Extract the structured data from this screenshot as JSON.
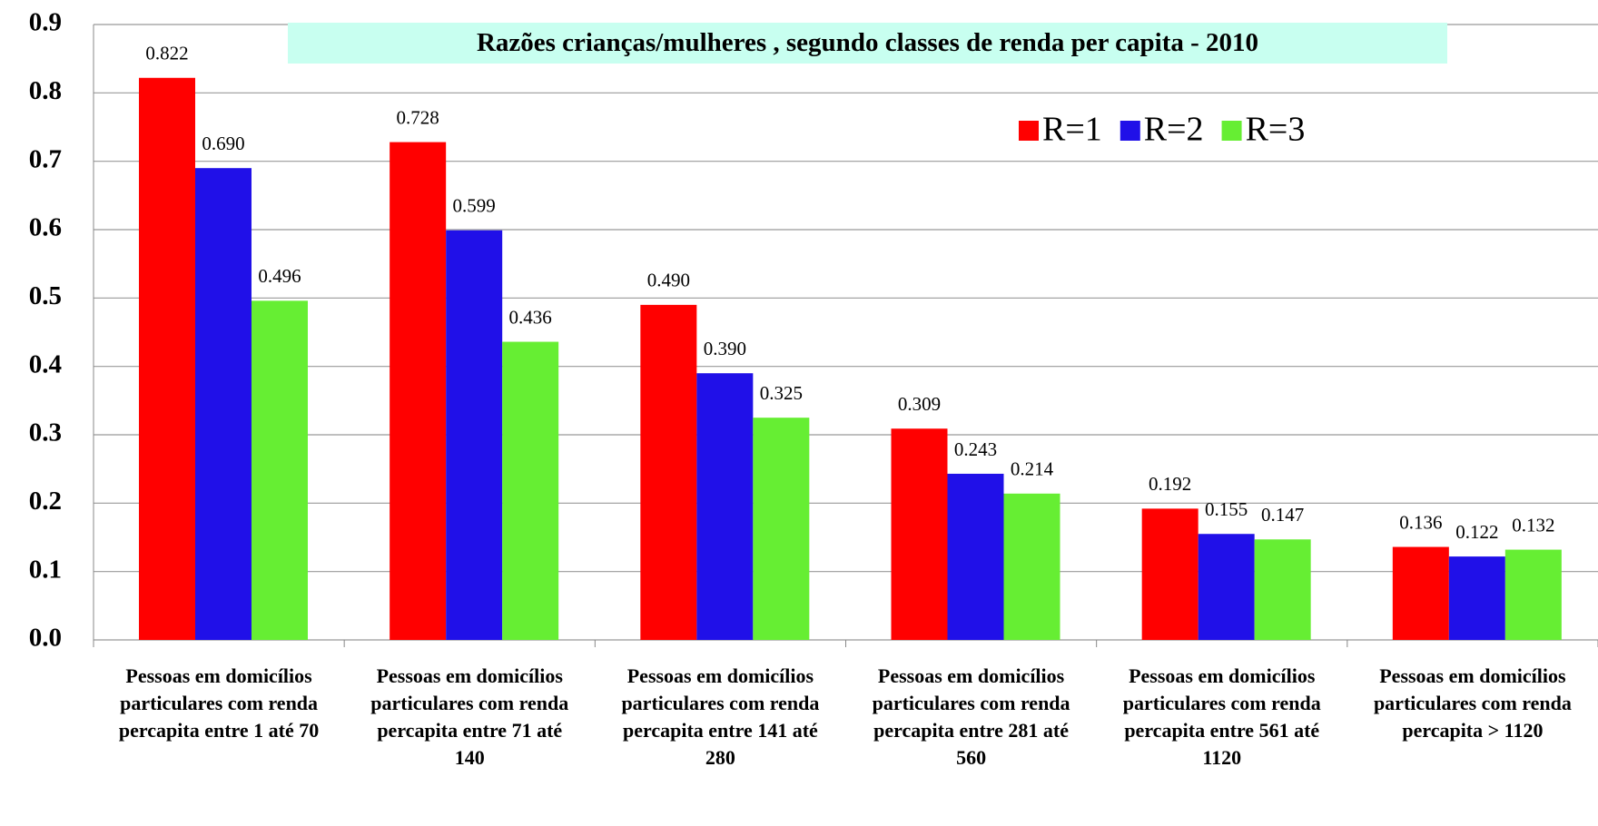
{
  "chart_data": {
    "type": "bar",
    "title": "Razões crianças/mulheres , segundo classes de renda per capita - 2010",
    "categories": [
      "Pessoas em domicílios particulares com renda percapita entre 1 até 70",
      "Pessoas em domicílios particulares com renda percapita entre 71 até 140",
      "Pessoas em domicílios particulares com renda percapita entre 141 até 280",
      "Pessoas em domicílios particulares com renda percapita entre 281 até 560",
      "Pessoas em domicílios particulares com renda percapita entre 561 até 1120",
      "Pessoas em domicílios particulares com renda percapita > 1120"
    ],
    "series": [
      {
        "name": "R=1",
        "color": "#ff0000",
        "values": [
          0.822,
          0.728,
          0.49,
          0.309,
          0.192,
          0.136
        ],
        "value_labels": [
          "0.822",
          "0.728",
          "0.490",
          "0.309",
          "0.192",
          "0.136"
        ]
      },
      {
        "name": "R=2",
        "color": "#2010e8",
        "values": [
          0.69,
          0.599,
          0.39,
          0.243,
          0.155,
          0.122
        ],
        "value_labels": [
          "0.690",
          "0.599",
          "0.390",
          "0.243",
          "0.155",
          "0.122"
        ]
      },
      {
        "name": "R=3",
        "color": "#66ee33",
        "values": [
          0.496,
          0.436,
          0.325,
          0.214,
          0.147,
          0.132
        ],
        "value_labels": [
          "0.496",
          "0.436",
          "0.325",
          "0.214",
          "0.147",
          "0.132"
        ]
      }
    ],
    "ylim": [
      0,
      0.9
    ],
    "yticks": [
      {
        "value": 0,
        "label": "0.0"
      },
      0.1,
      0.2,
      0.3,
      0.4,
      0.5,
      0.6,
      0.7,
      0.8,
      0.9
    ],
    "grid": true,
    "legend": "top-right"
  }
}
